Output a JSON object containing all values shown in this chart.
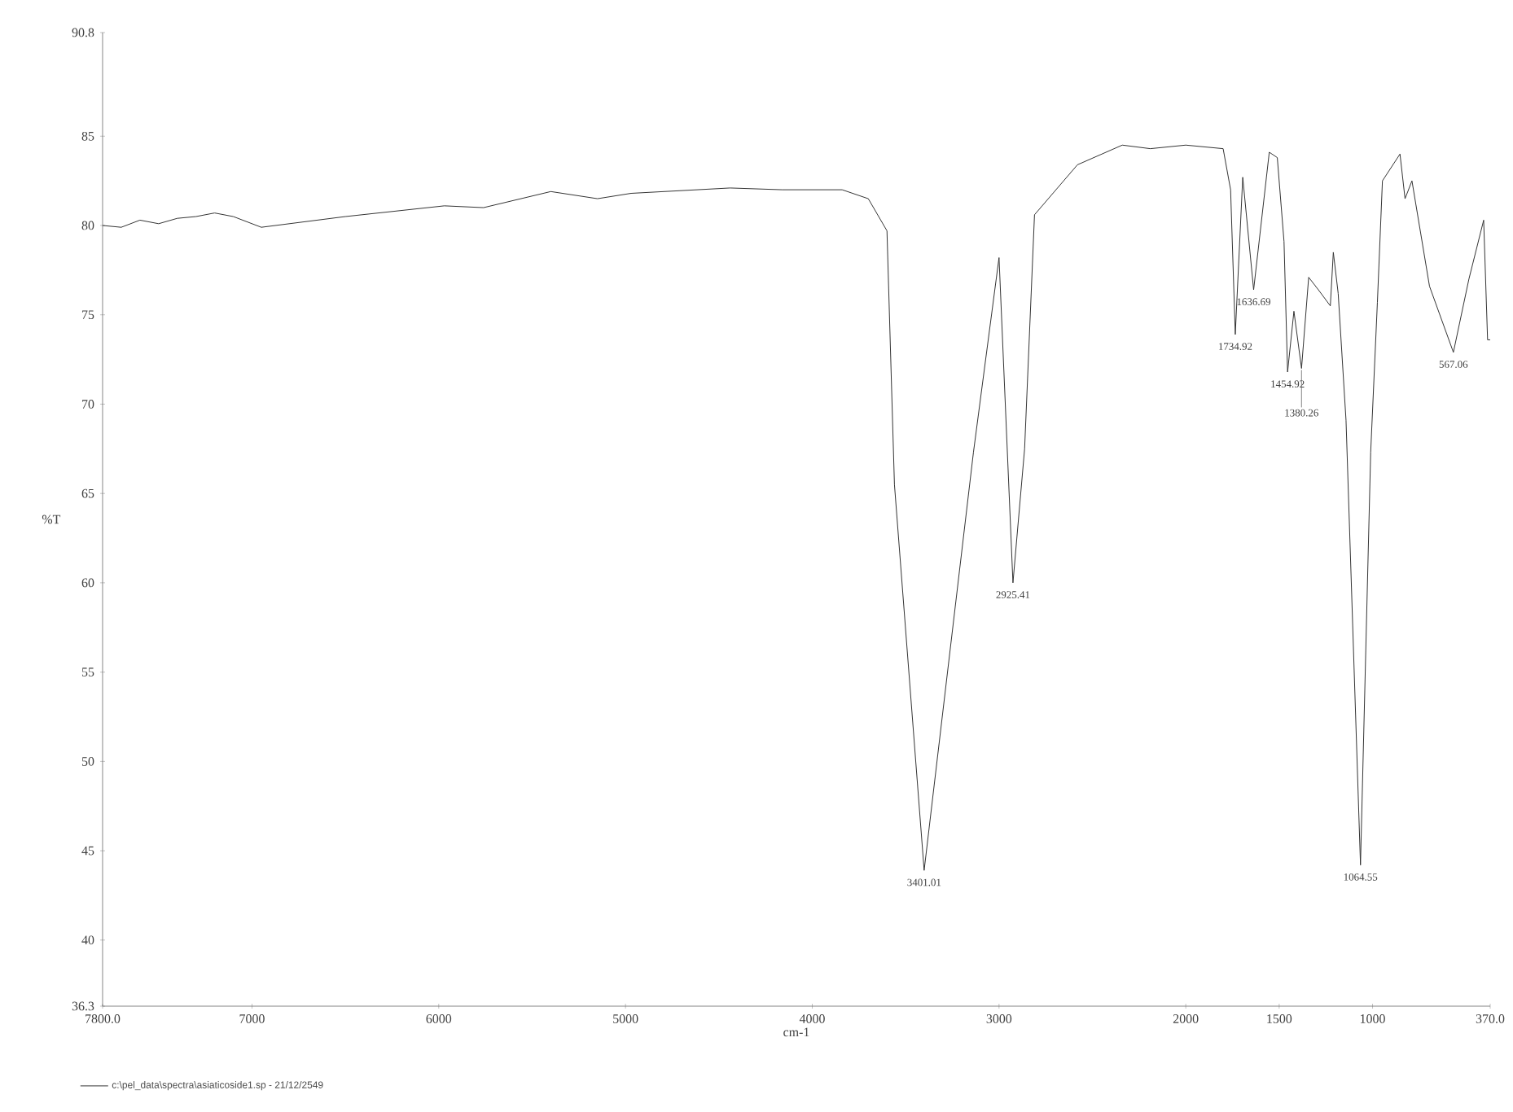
{
  "chart_data": {
    "type": "line",
    "xlabel": "cm-1",
    "ylabel": "%T",
    "xlim": [
      7800,
      370
    ],
    "ylim": [
      36.3,
      90.8
    ],
    "xticks": [
      {
        "value": 7800,
        "label": "7800.0"
      },
      7000,
      6000,
      5000,
      4000,
      3000,
      2000,
      1500,
      1000,
      {
        "value": 370,
        "label": "370.0"
      }
    ],
    "yticks": [
      36.3,
      40,
      45,
      50,
      55,
      60,
      65,
      70,
      75,
      80,
      85,
      90.8
    ],
    "grid": false,
    "legend": "bottom left",
    "marker": "none",
    "line_style": "solid",
    "series": [
      {
        "name": "c:\\pel_data\\spectra\\asiaticoside1.sp - 21/12/2549",
        "color": "#333333",
        "x": [
          7800,
          7700,
          7600,
          7500,
          7400,
          7300,
          7200,
          7100,
          7050,
          6950,
          6500,
          5970,
          5760,
          5400,
          5150,
          4970,
          4440,
          4160,
          3840,
          3700,
          3600,
          3560,
          3401.01,
          3137,
          3000,
          2925.41,
          2863,
          2810,
          2580,
          2340,
          2190,
          2000,
          1800,
          1760,
          1734.92,
          1695,
          1636.69,
          1553,
          1510,
          1474,
          1454.92,
          1421,
          1380.26,
          1342,
          1290,
          1226,
          1210,
          1184,
          1142,
          1064.55,
          1010,
          974,
          947,
          853,
          826,
          789,
          695,
          567.06,
          484,
          405,
          384,
          370
        ],
        "values": [
          80.0,
          79.9,
          80.3,
          80.1,
          80.4,
          80.5,
          80.7,
          80.5,
          80.3,
          79.9,
          80.5,
          81.1,
          81.0,
          81.9,
          81.5,
          81.8,
          82.1,
          82.0,
          82.0,
          81.5,
          79.7,
          65.5,
          43.9,
          67.3,
          78.2,
          60.0,
          67.5,
          80.6,
          83.4,
          84.5,
          84.3,
          84.5,
          84.3,
          82.0,
          73.9,
          82.7,
          76.4,
          84.1,
          83.8,
          79.1,
          71.8,
          75.2,
          72.0,
          77.1,
          76.4,
          75.5,
          78.5,
          76.2,
          69.1,
          44.2,
          67.3,
          75.7,
          82.5,
          84.0,
          81.5,
          82.5,
          76.6,
          72.9,
          77.0,
          80.3,
          73.6,
          73.6
        ]
      }
    ],
    "annotations": [
      {
        "text": "3401.01",
        "x": 3401.01,
        "y": 43.9
      },
      {
        "text": "2925.41",
        "x": 2925.41,
        "y": 60.0
      },
      {
        "text": "1734.92",
        "x": 1734.92,
        "y": 73.9
      },
      {
        "text": "1636.69",
        "x": 1636.69,
        "y": 76.4
      },
      {
        "text": "1454.92",
        "x": 1454.92,
        "y": 71.8
      },
      {
        "text": "1380.26",
        "x": 1380.26,
        "y": 72.0
      },
      {
        "text": "1064.55",
        "x": 1064.55,
        "y": 44.2
      },
      {
        "text": "567.06",
        "x": 567.06,
        "y": 72.9
      }
    ]
  }
}
